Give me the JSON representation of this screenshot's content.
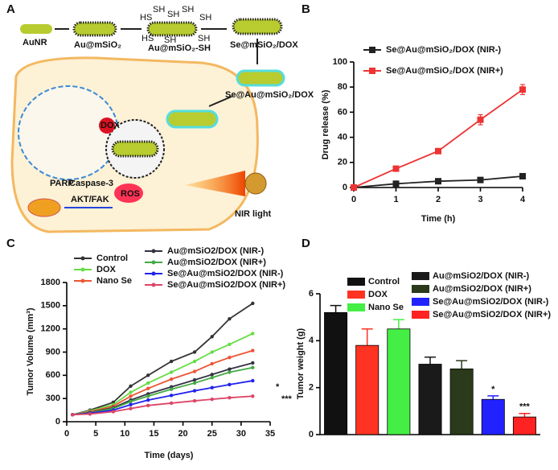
{
  "diagram": {
    "panel": "A",
    "labels": {
      "aunr": "AuNR",
      "au_msio2": "Au@mSiO₂",
      "au_msio2_sh": "Au@mSiO₂-SH",
      "se_msio2_dox": "Se@mSiO₂/DOX",
      "se_au_msio2_dox": "Se@Au@mSiO₂/DOX",
      "dox": "DOX",
      "parp": "PARP",
      "caspase": "Caspase-3",
      "akt": "AKT/FAK",
      "ros": "ROS",
      "nir": "NIR light"
    },
    "sh_labels": [
      "HS",
      "SH",
      "SH",
      "SH",
      "SH",
      "HS",
      "SH",
      "SH"
    ]
  },
  "chart_data": [
    {
      "type": "line",
      "panel": "B",
      "xlabel": "Time (h)",
      "ylabel": "Drug release (%)",
      "x": [
        0,
        1,
        2,
        3,
        4
      ],
      "xlim": [
        0,
        4
      ],
      "xticks": [
        0,
        1,
        2,
        3,
        4
      ],
      "ylim": [
        0,
        100
      ],
      "yticks": [
        0,
        20,
        40,
        60,
        80,
        100
      ],
      "series": [
        {
          "name": "Se@Au@mSiO₂/DOX (NIR-)",
          "color": "#222222",
          "marker": "square",
          "values": [
            0,
            3,
            5,
            6,
            9
          ],
          "errors": [
            0.5,
            1,
            1,
            1,
            1
          ]
        },
        {
          "name": "Se@Au@mSiO₂/DOX (NIR+)",
          "color": "#ee3333",
          "marker": "square",
          "values": [
            0,
            15,
            29,
            54,
            78
          ],
          "errors": [
            1,
            1,
            2,
            4,
            4
          ]
        }
      ]
    },
    {
      "type": "line",
      "panel": "C",
      "xlabel": "Time (days)",
      "ylabel": "Tumor Volume (mm³)",
      "x": [
        1,
        4,
        8,
        11,
        14,
        18,
        22,
        25,
        28,
        32
      ],
      "xlim": [
        0,
        35
      ],
      "xticks": [
        0,
        5,
        10,
        15,
        20,
        25,
        30,
        35
      ],
      "ylim": [
        0,
        1800
      ],
      "yticks": [
        0,
        300,
        600,
        900,
        1200,
        1500,
        1800
      ],
      "series": [
        {
          "name": "Control",
          "color": "#333333",
          "marker": "circle",
          "values": [
            90,
            150,
            250,
            460,
            600,
            780,
            900,
            1100,
            1330,
            1530
          ]
        },
        {
          "name": "DOX",
          "color": "#66dd44",
          "marker": "circle",
          "values": [
            90,
            140,
            220,
            380,
            500,
            640,
            780,
            900,
            1000,
            1140
          ]
        },
        {
          "name": "Nano Se",
          "color": "#ee5533",
          "marker": "circle",
          "values": [
            90,
            130,
            200,
            330,
            430,
            550,
            650,
            750,
            830,
            920
          ]
        },
        {
          "name": "Au@mSiO2/DOX (NIR-)",
          "color": "#333344",
          "marker": "circle",
          "values": [
            90,
            120,
            180,
            280,
            360,
            450,
            540,
            610,
            680,
            760
          ]
        },
        {
          "name": "Au@mSiO2/DOX (NIR+)",
          "color": "#44aa44",
          "marker": "circle",
          "values": [
            90,
            115,
            170,
            260,
            330,
            420,
            500,
            570,
            640,
            700
          ]
        },
        {
          "name": "Se@Au@mSiO2/DOX (NIR-)",
          "color": "#2222ee",
          "marker": "circle",
          "values": [
            90,
            110,
            150,
            220,
            280,
            340,
            400,
            440,
            480,
            530
          ]
        },
        {
          "name": "Se@Au@mSiO2/DOX (NIR+)",
          "color": "#dd4466",
          "marker": "circle",
          "values": [
            90,
            100,
            130,
            170,
            210,
            240,
            270,
            290,
            310,
            330
          ]
        }
      ],
      "annotations": [
        "*",
        "***"
      ]
    },
    {
      "type": "bar",
      "panel": "D",
      "ylabel": "Tumor weight (g)",
      "categories": [
        "Control",
        "DOX",
        "Nano Se",
        "Au@mSiO2/DOX (NIR-)",
        "Au@mSiO2/DOX (NIR+)",
        "Se@Au@mSiO2/DOX (NIR-)",
        "Se@Au@mSiO2/DOX (NIR+)"
      ],
      "values": [
        5.2,
        3.8,
        4.5,
        3.0,
        2.8,
        1.5,
        0.75
      ],
      "errors": [
        0.3,
        0.7,
        0.4,
        0.3,
        0.35,
        0.15,
        0.15
      ],
      "colors": [
        "#111111",
        "#ff3322",
        "#44ee44",
        "#1a1a1a",
        "#2a3a1a",
        "#2222ff",
        "#ff2222"
      ],
      "ylim": [
        0,
        6
      ],
      "yticks": [
        0,
        2,
        4,
        6
      ],
      "annotations": [
        "*",
        "***"
      ]
    }
  ]
}
